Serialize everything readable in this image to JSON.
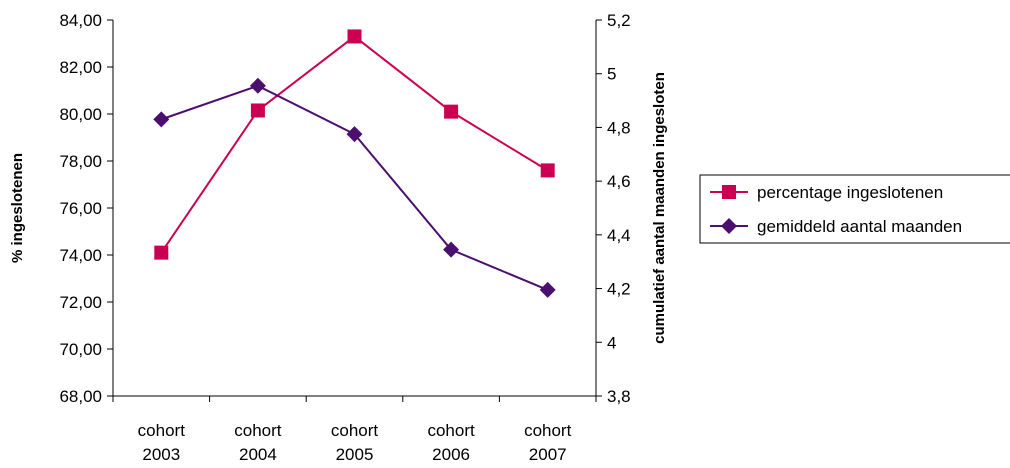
{
  "chart_data": {
    "type": "line",
    "categories": [
      [
        "cohort",
        "2003"
      ],
      [
        "cohort",
        "2004"
      ],
      [
        "cohort",
        "2005"
      ],
      [
        "cohort",
        "2006"
      ],
      [
        "cohort",
        "2007"
      ]
    ],
    "y_left": {
      "label": "% ingeslotenen",
      "min": 68,
      "max": 84,
      "ticks": [
        "68,00",
        "70,00",
        "72,00",
        "74,00",
        "76,00",
        "78,00",
        "80,00",
        "82,00",
        "84,00"
      ]
    },
    "y_right": {
      "label": "cumulatief aantal maanden ingesloten",
      "min": 3.8,
      "max": 5.2,
      "ticks": [
        "3,8",
        "4",
        "4,2",
        "4,4",
        "4,6",
        "4,8",
        "5",
        "5,2"
      ]
    },
    "series": [
      {
        "name": "percentage ingeslotenen",
        "axis": "left",
        "color": "#CC0052",
        "marker": "square",
        "values": [
          74.1,
          80.15,
          83.3,
          80.1,
          77.6
        ]
      },
      {
        "name": "gemiddeld aantal maanden",
        "axis": "right",
        "color": "#4B0F6E",
        "marker": "diamond",
        "values": [
          4.83,
          4.955,
          4.775,
          4.345,
          4.195
        ]
      }
    ],
    "legend_position": "right",
    "grid": false
  }
}
